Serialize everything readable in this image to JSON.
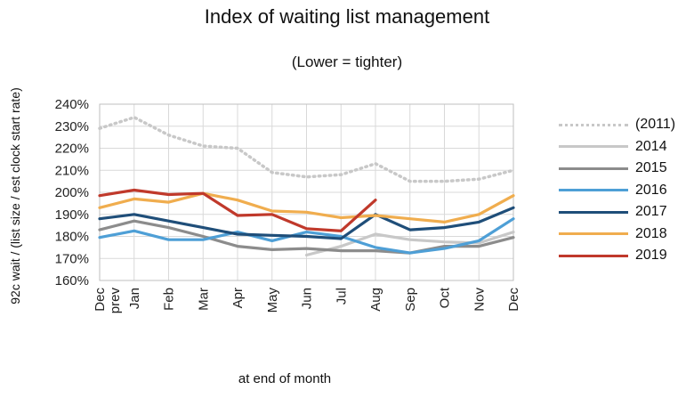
{
  "chart_data": {
    "type": "line",
    "title": "Index of waiting list management",
    "subtitle": "(Lower = tighter)",
    "xlabel": "at end of month",
    "ylabel": "92c wait / (list size / est clock start rate)",
    "categories": [
      "Dec prev",
      "Jan",
      "Feb",
      "Mar",
      "Apr",
      "May",
      "Jun",
      "Jul",
      "Aug",
      "Sep",
      "Oct",
      "Nov",
      "Dec"
    ],
    "y_ticks": [
      "160%",
      "170%",
      "180%",
      "190%",
      "200%",
      "210%",
      "220%",
      "230%",
      "240%"
    ],
    "ylim": [
      160,
      240
    ],
    "grid": true,
    "legend_position": "right",
    "series": [
      {
        "name": "(2011)",
        "color": "#c8c8c8",
        "style": "dotted",
        "values": [
          229,
          234,
          226,
          221,
          220,
          209,
          207,
          208,
          213,
          205,
          205,
          206,
          210
        ]
      },
      {
        "name": "2014",
        "color": "#c8c8c8",
        "style": "solid",
        "values": [
          null,
          null,
          null,
          null,
          null,
          null,
          171.5,
          175.5,
          181,
          178.5,
          177.5,
          177,
          182
        ]
      },
      {
        "name": "2015",
        "color": "#8c8c8c",
        "style": "solid",
        "values": [
          183,
          187,
          184,
          180,
          175.5,
          174,
          174.5,
          173.5,
          173.5,
          172.5,
          175.5,
          175.5,
          179.5
        ]
      },
      {
        "name": "2016",
        "color": "#4e9fd6",
        "style": "solid",
        "values": [
          179.5,
          182.5,
          178.5,
          178.5,
          182,
          178,
          182,
          180,
          175,
          172.5,
          174.5,
          178,
          188
        ]
      },
      {
        "name": "2017",
        "color": "#1f4e79",
        "style": "solid",
        "values": [
          188,
          190,
          187,
          184,
          181,
          180.5,
          180,
          179,
          190,
          183,
          184,
          186.5,
          193
        ]
      },
      {
        "name": "2018",
        "color": "#f0ad4e",
        "style": "solid",
        "values": [
          193,
          197,
          195.5,
          199.5,
          196.5,
          191.5,
          191,
          188.5,
          189.5,
          188,
          186.5,
          190,
          198.5
        ]
      },
      {
        "name": "2019",
        "color": "#c0392b",
        "style": "solid",
        "values": [
          198.5,
          201,
          199,
          199.5,
          189.5,
          190,
          183.5,
          182.5,
          196.5,
          null,
          null,
          null,
          null
        ]
      }
    ]
  }
}
